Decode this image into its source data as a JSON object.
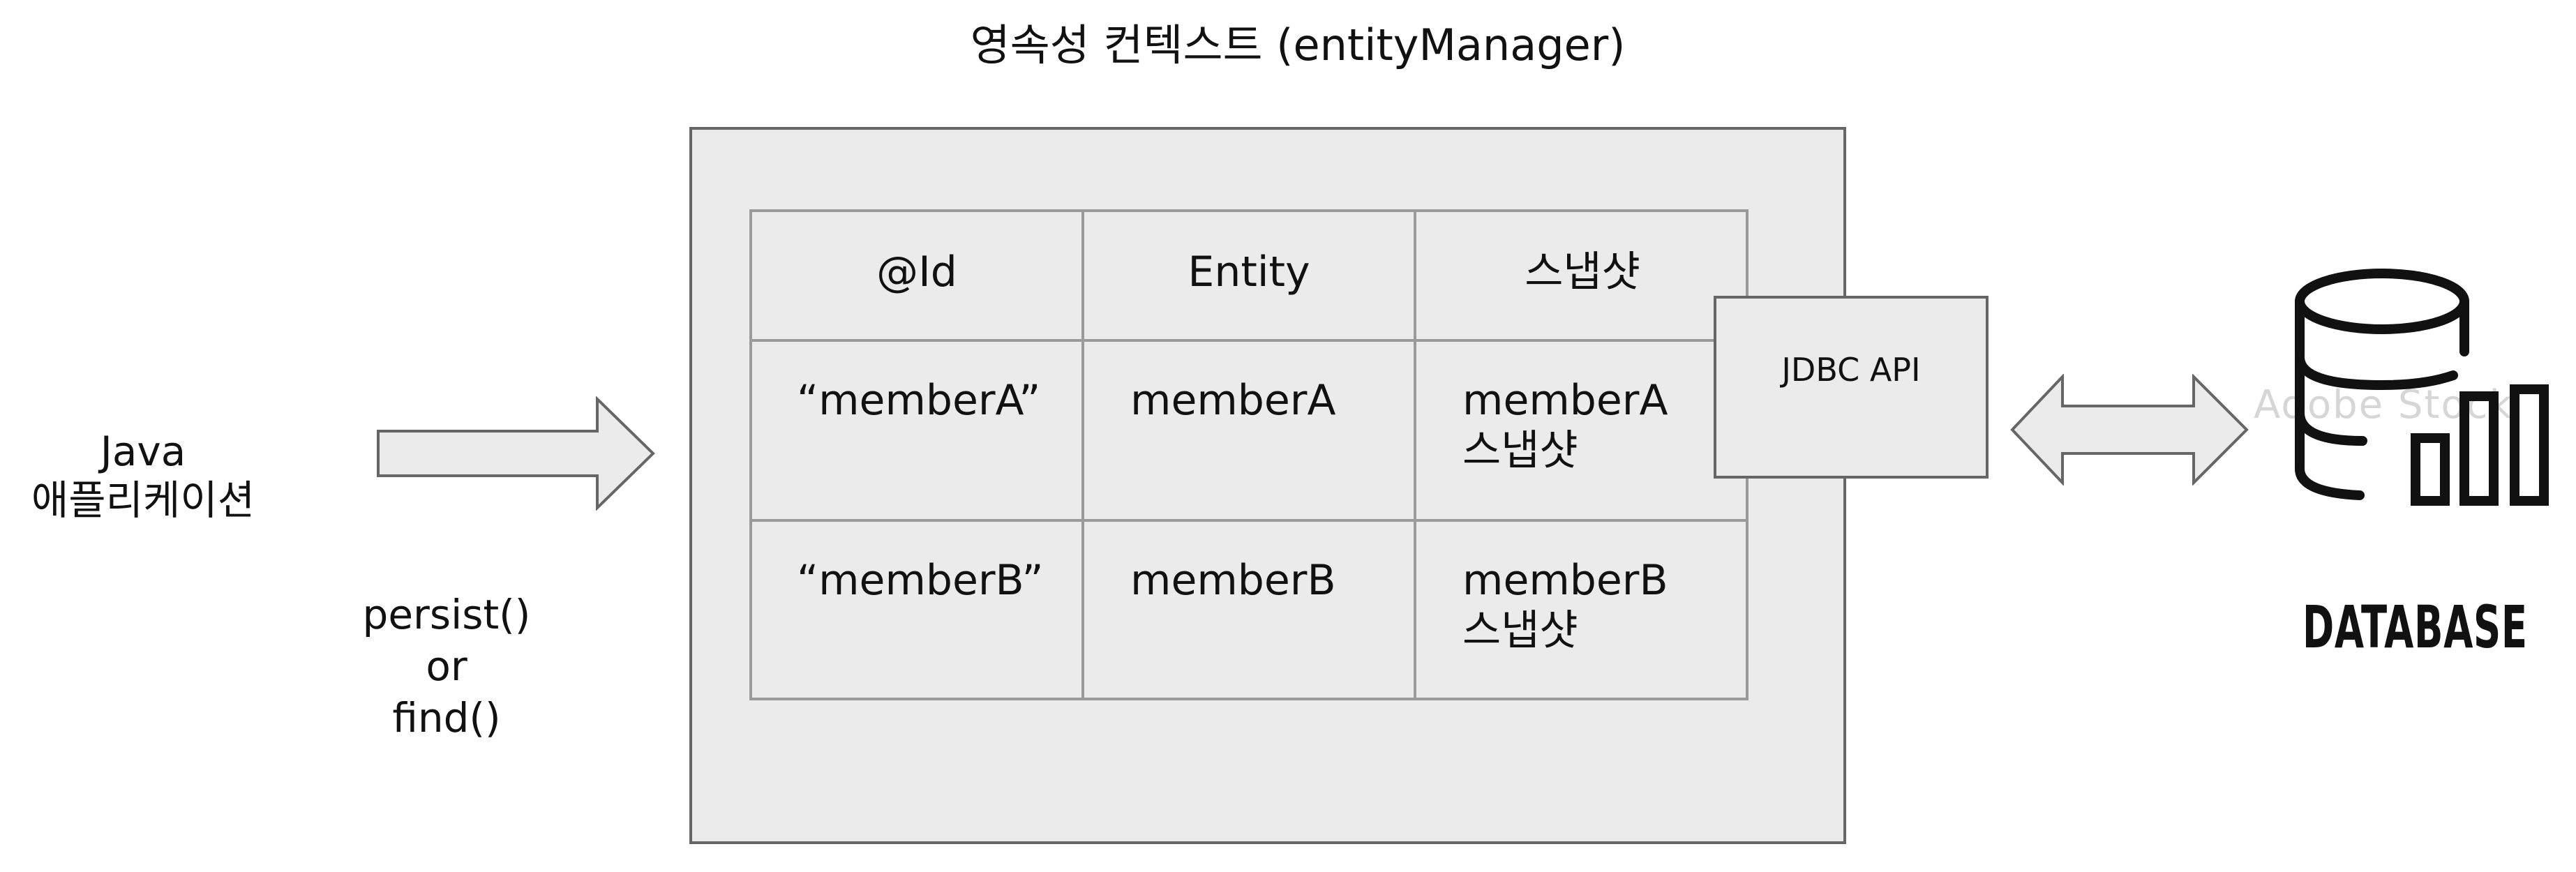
{
  "title": "영속성 컨텍스트 (entityManager)",
  "java_app": {
    "line1": "Java",
    "line2": "애플리케이션"
  },
  "operations": {
    "line1": "persist()",
    "line2": "or",
    "line3": "find()"
  },
  "table": {
    "headers": [
      "@Id",
      "Entity",
      "스냅샷"
    ],
    "rows": [
      {
        "id": "“memberA”",
        "entity": "memberA",
        "snapshot_line1": "memberA",
        "snapshot_line2": "스냅샷"
      },
      {
        "id": "“memberB”",
        "entity": "memberB",
        "snapshot_line1": "memberB",
        "snapshot_line2": "스냅샷"
      }
    ]
  },
  "jdbc_label": "JDBC API",
  "database_label": "DATABASE",
  "watermark": "Adobe Stock",
  "icons": {
    "arrow_right": "arrow-right-icon",
    "arrow_double": "double-arrow-icon",
    "database": "database-icon"
  },
  "colors": {
    "box_fill": "#ebebeb",
    "box_border": "#666666",
    "grid_line": "#9a9a9a",
    "text": "#111111"
  }
}
